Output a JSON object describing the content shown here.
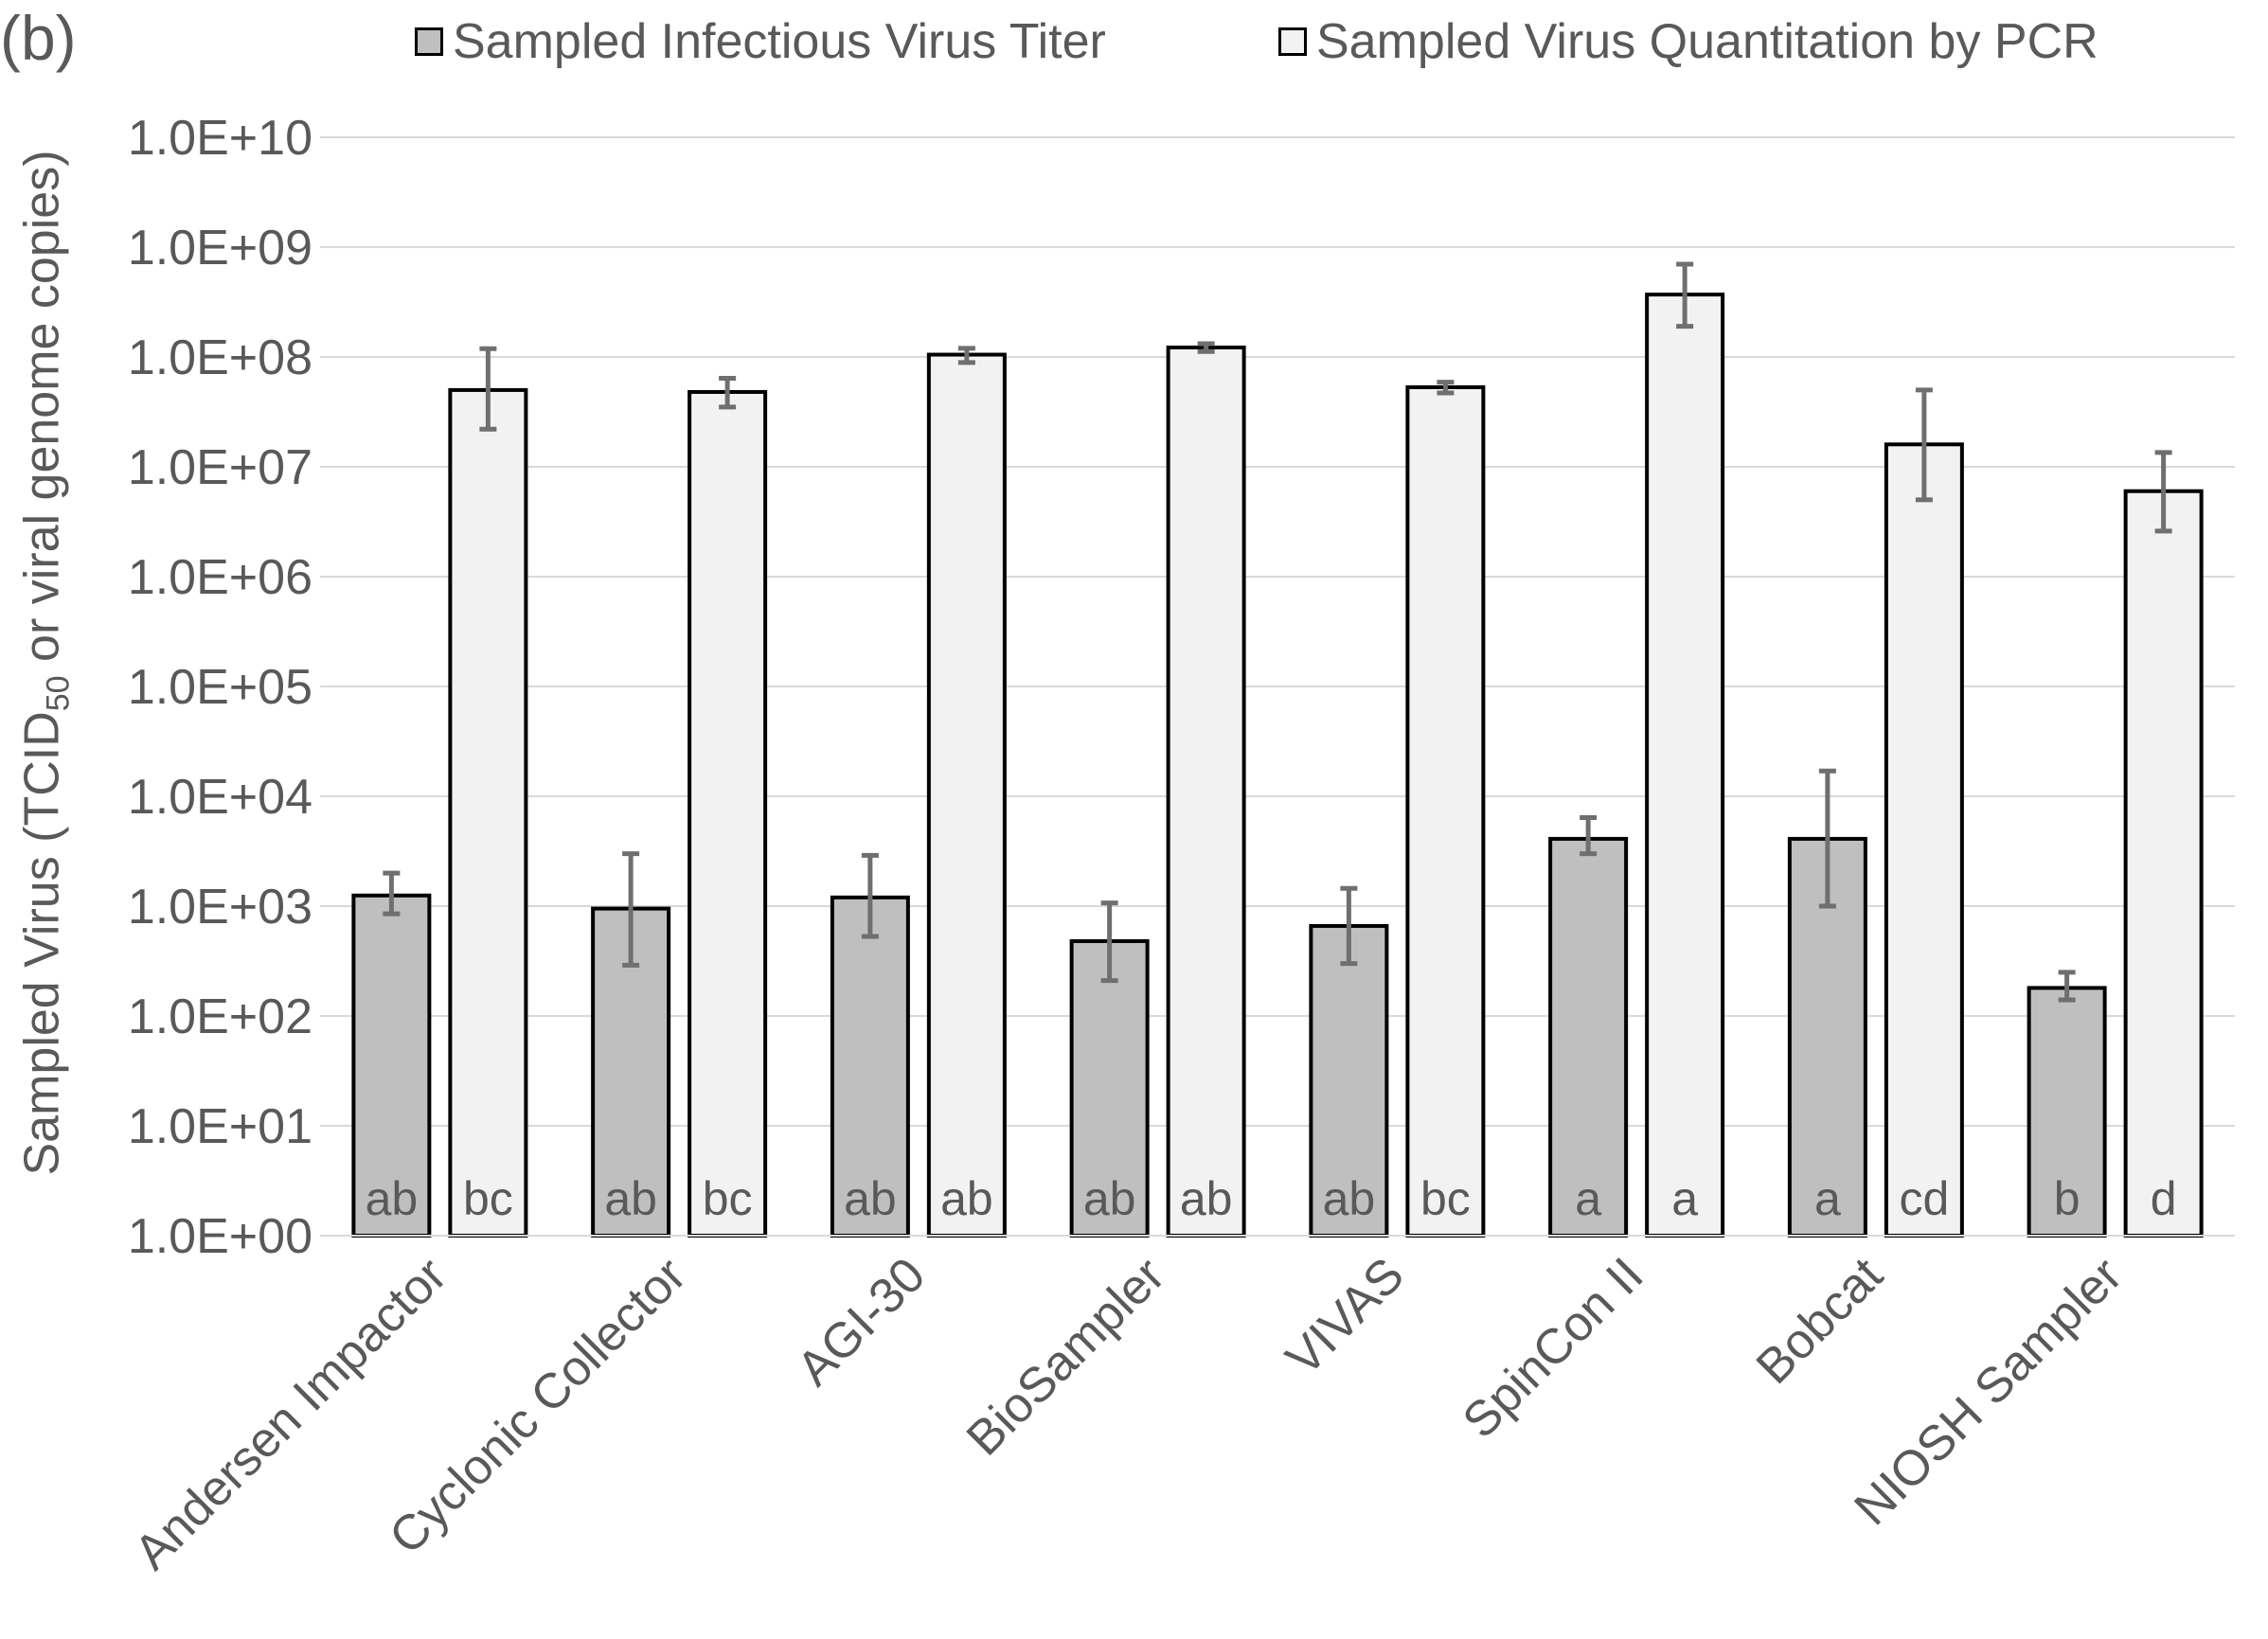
{
  "panel_label": "(b)",
  "legend": [
    {
      "label": "Sampled Infectious Virus Titer",
      "color": "#bfbfbf"
    },
    {
      "label": "Sampled Virus Quantitation by PCR",
      "color": "#f2f2f2"
    }
  ],
  "y_axis_label": {
    "prefix": "Sampled Virus (TCID",
    "subscript": "50",
    "suffix": " or viral genome copies)"
  },
  "chart_data": {
    "type": "bar",
    "scale": "log",
    "ylim": [
      1,
      10000000000
    ],
    "y_tick_labels": [
      "1.0E+00",
      "1.0E+01",
      "1.0E+02",
      "1.0E+03",
      "1.0E+04",
      "1.0E+05",
      "1.0E+06",
      "1.0E+07",
      "1.0E+08",
      "1.0E+09",
      "1.0E+10"
    ],
    "grid": true,
    "legend_position": "top",
    "categories": [
      "Andersen Impactor",
      "Cyclonic Collector",
      "AGI-30",
      "BioSampler",
      "VIVAS",
      "SpinCon II",
      "Bobcat",
      "NIOSH Sampler"
    ],
    "series": [
      {
        "name": "Sampled Infectious Virus Titer",
        "color": "#bfbfbf",
        "values": [
          1250,
          950,
          1200,
          480,
          660,
          4100,
          4100,
          180
        ],
        "err_low": [
          850,
          290,
          530,
          210,
          300,
          3000,
          1000,
          140
        ],
        "err_high": [
          2000,
          3000,
          2900,
          1070,
          1450,
          6400,
          17000,
          250
        ],
        "letters": [
          "ab",
          "ab",
          "ab",
          "ab",
          "ab",
          "a",
          "a",
          "b"
        ]
      },
      {
        "name": "Sampled Virus Quantitation by PCR",
        "color": "#f2f2f2",
        "values": [
          50000000,
          48000000,
          105000000,
          122000000,
          53000000,
          370000000,
          16000000,
          6000000
        ],
        "err_low": [
          22000000,
          35000000,
          89000000,
          112000000,
          47000000,
          190000000,
          5000000,
          2600000
        ],
        "err_high": [
          119000000,
          64000000,
          120000000,
          132000000,
          59000000,
          700000000,
          50000000,
          13500000
        ],
        "letters": [
          "bc",
          "bc",
          "ab",
          "ab",
          "bc",
          "a",
          "cd",
          "d"
        ]
      }
    ]
  }
}
